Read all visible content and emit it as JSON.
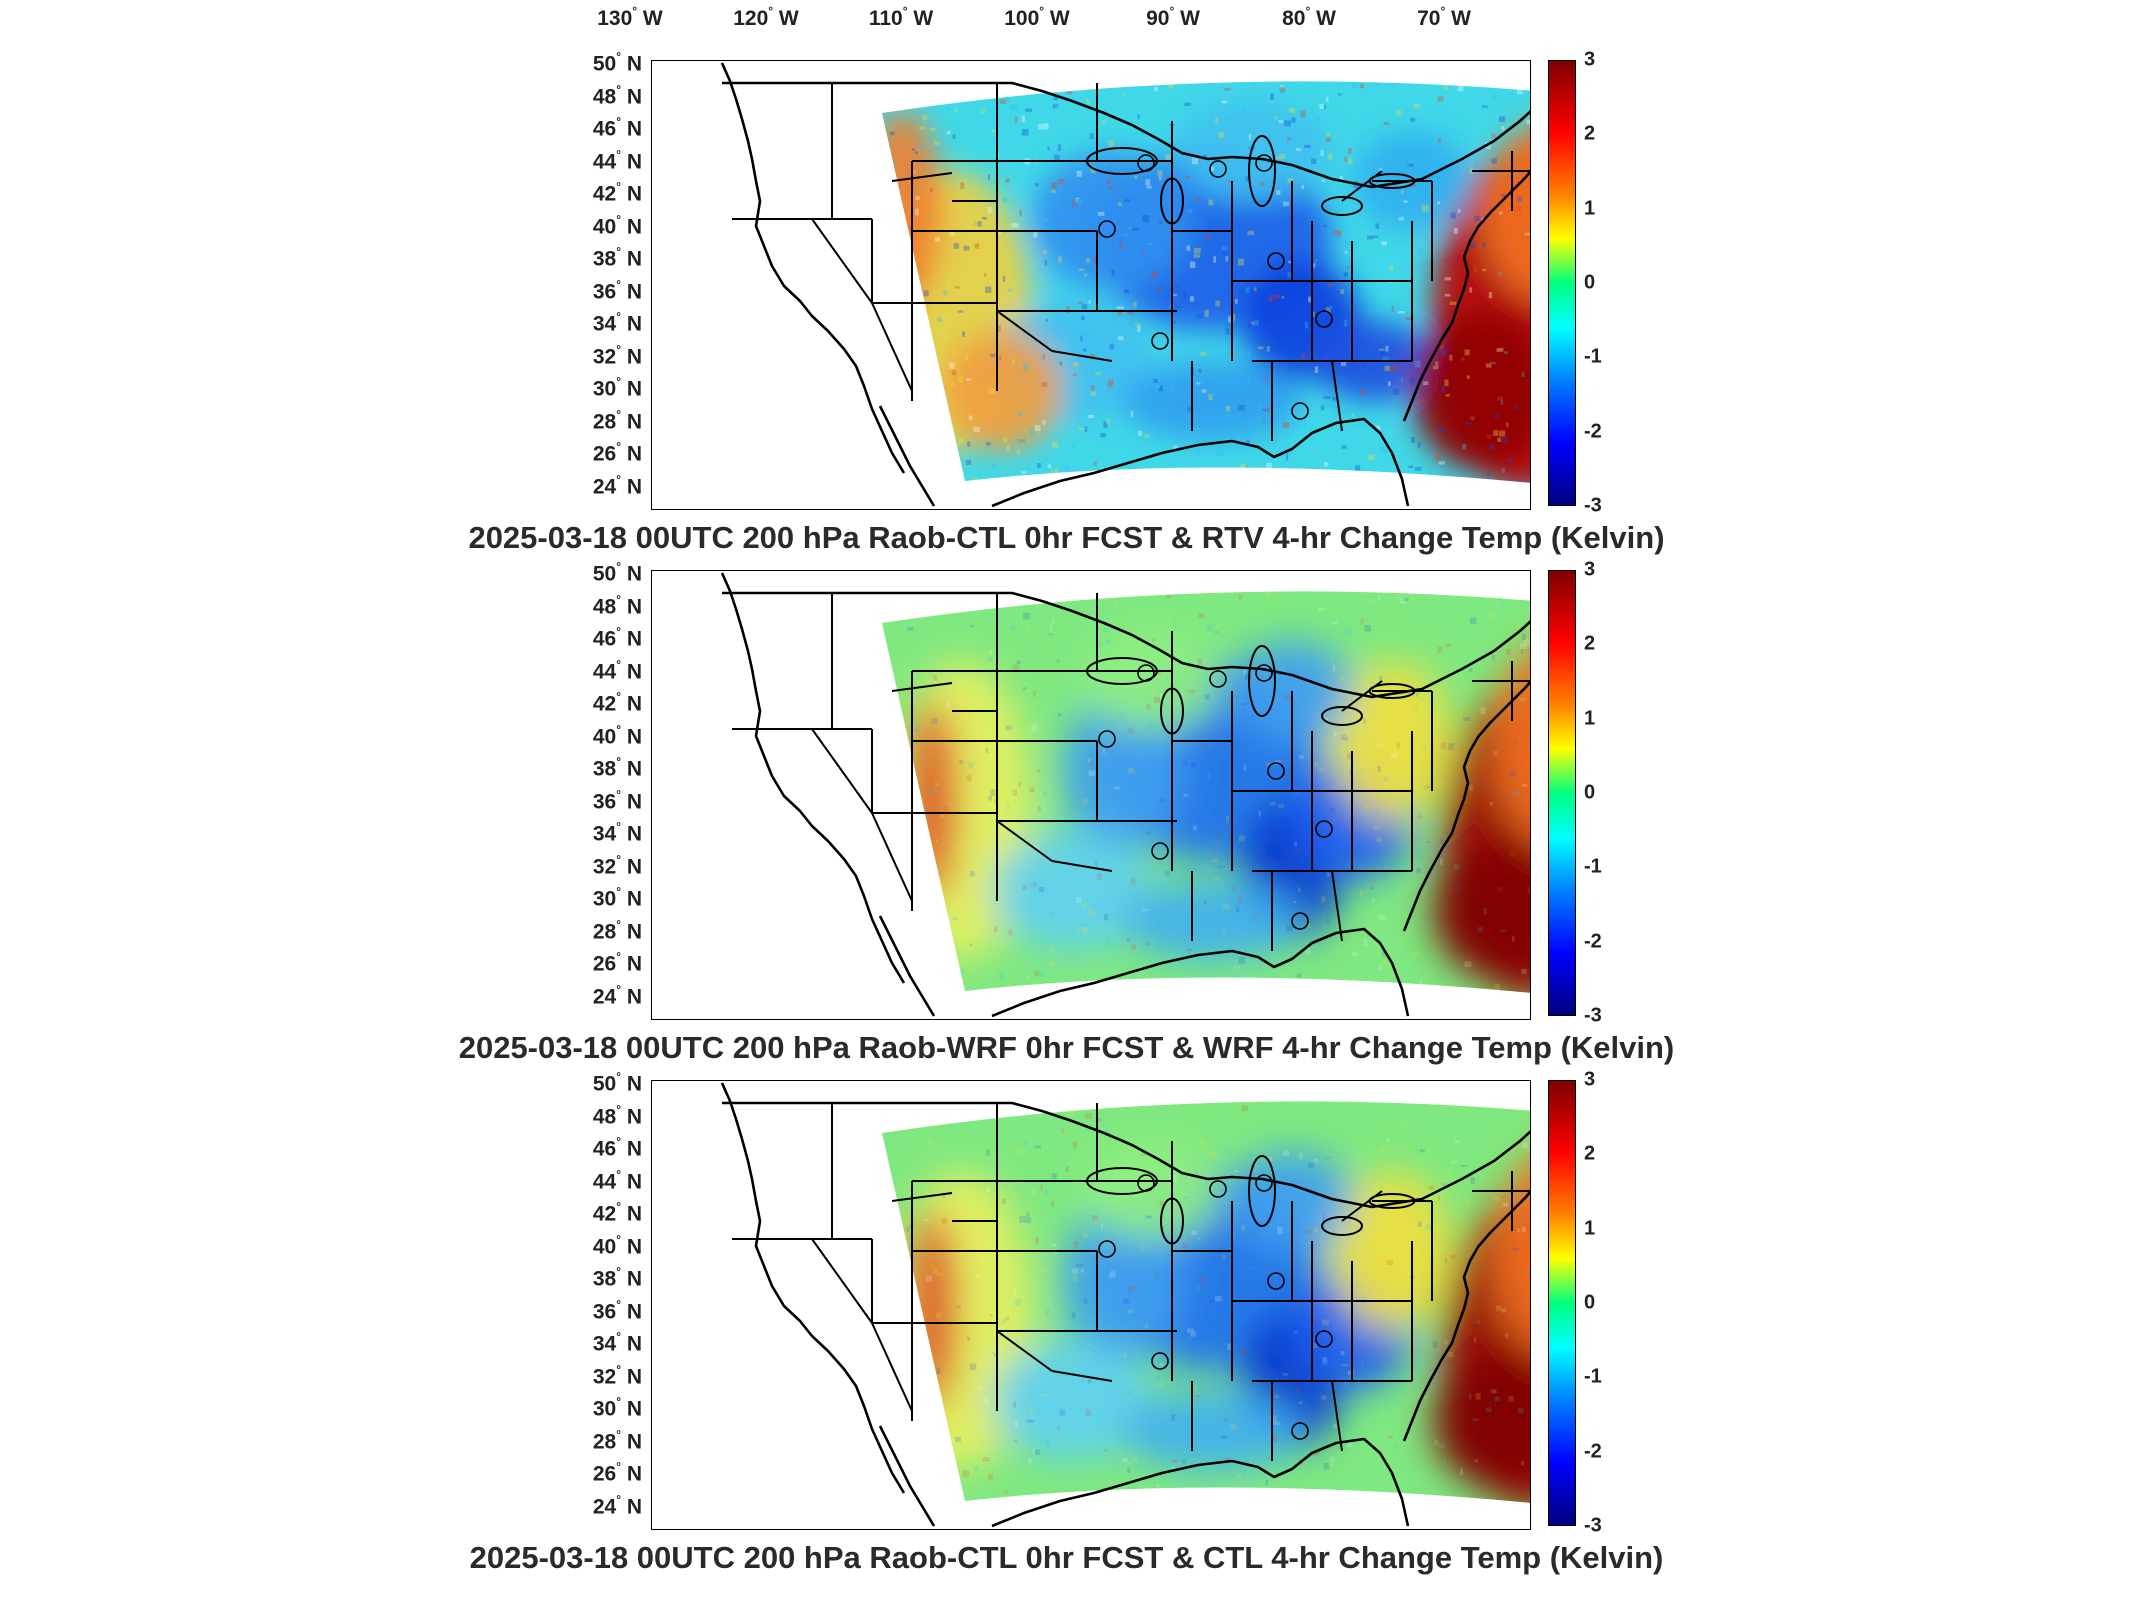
{
  "longitude_labels": [
    "130",
    "120",
    "110",
    "100",
    "90",
    "80",
    "70"
  ],
  "lon_suffix": "W",
  "latitude_labels": [
    "50",
    "48",
    "46",
    "44",
    "42",
    "40",
    "38",
    "36",
    "34",
    "32",
    "30",
    "28",
    "26",
    "24"
  ],
  "lat_suffix": "N",
  "degree_symbol": "°",
  "colorbar_ticks": [
    "3",
    "2",
    "1",
    "0",
    "-1",
    "-2",
    "-3"
  ],
  "colorbar_range": [
    -3,
    3
  ],
  "colormap": "jet",
  "colors": {
    "warm_anomaly": "#b00000",
    "cool_anomaly": "#0030d0",
    "neutral": "#40e8c0",
    "outline": "#000000"
  },
  "panels": [
    {
      "title": "2025-03-18 00UTC 200 hPa Raob-CTL 0hr FCST & RTV 4-hr Change Temp (Kelvin)"
    },
    {
      "title": "2025-03-18 00UTC 200 hPa Raob-WRF 0hr FCST & WRF 4-hr Change Temp (Kelvin)"
    },
    {
      "title": "2025-03-18 00UTC 200 hPa Raob-CTL 0hr FCST & CTL 4-hr Change Temp (Kelvin)"
    }
  ]
}
